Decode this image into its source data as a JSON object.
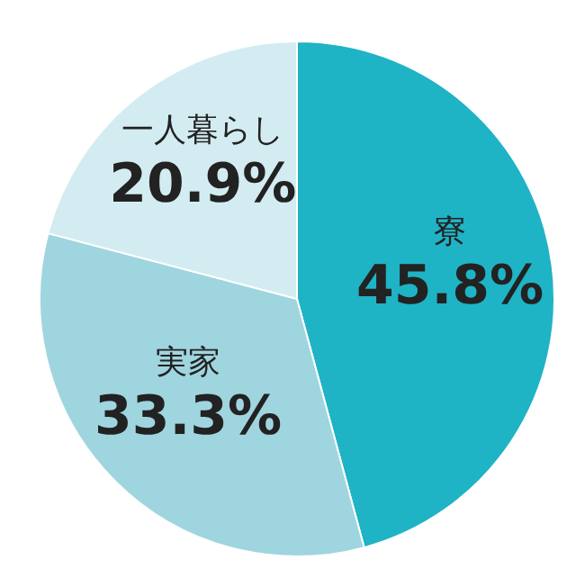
{
  "chart_data": {
    "type": "pie",
    "categories": [
      "寮",
      "実家",
      "一人暮らし"
    ],
    "values": [
      45.8,
      33.3,
      20.9
    ],
    "colors": [
      "#1fb3c6",
      "#9fd5df",
      "#d3ecf1"
    ],
    "value_labels": [
      "45.8%",
      "33.3%",
      "20.9%"
    ],
    "legend": false
  }
}
